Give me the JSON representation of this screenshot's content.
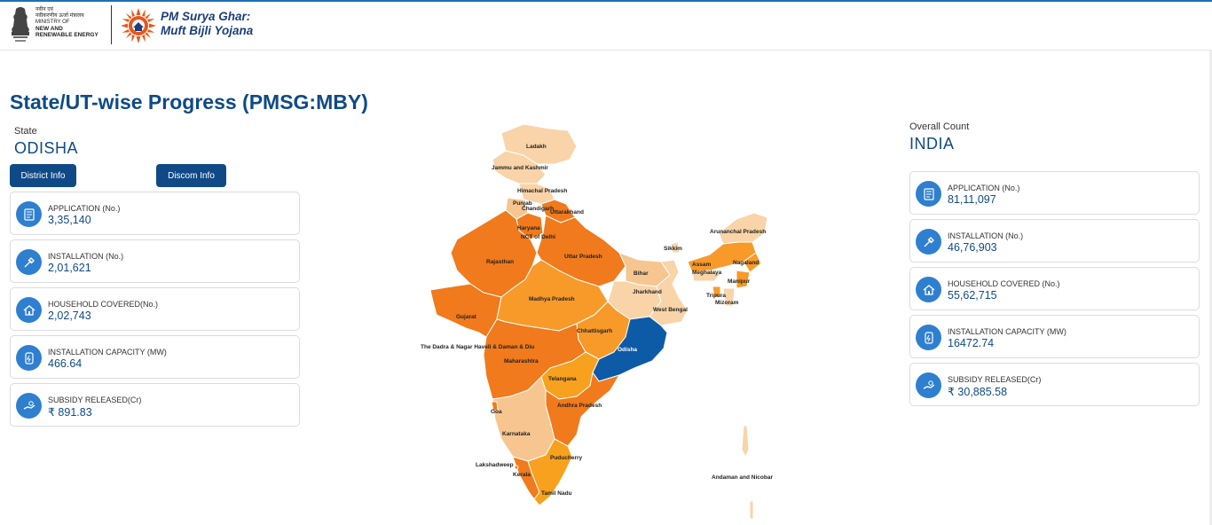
{
  "header": {
    "ministry_hindi_1": "नवीन एवं",
    "ministry_hindi_2": "नवीकरणीय ऊर्जा मंत्रालय",
    "ministry_en_1": "MINISTRY OF",
    "ministry_en_2": "NEW AND",
    "ministry_en_3": "RENEWABLE ENERGY",
    "brand_line1": "PM Surya Ghar:",
    "brand_line2": "Muft Bijli Yojana"
  },
  "page_title": "State/UT-wise Progress (PMSG:MBY)",
  "state_panel": {
    "label": "State",
    "value": "ODISHA",
    "district_button": "District Info",
    "discom_button": "Discom Info",
    "cards": [
      {
        "label": "APPLICATION (No.)",
        "value": "3,35,140",
        "icon": "application-icon"
      },
      {
        "label": "INSTALLATION (No.)",
        "value": "2,01,621",
        "icon": "installation-icon"
      },
      {
        "label": "HOUSEHOLD COVERED(No.)",
        "value": "2,02,743",
        "icon": "household-icon"
      },
      {
        "label": "INSTALLATION CAPACITY (MW)",
        "value": "466.64",
        "icon": "capacity-icon"
      },
      {
        "label": "SUBSIDY RELEASED(Cr)",
        "value": "₹ 891.83",
        "icon": "subsidy-icon"
      }
    ]
  },
  "overall_panel": {
    "label": "Overall Count",
    "value": "INDIA",
    "cards": [
      {
        "label": "APPLICATION (No.)",
        "value": "81,11,097",
        "icon": "application-icon"
      },
      {
        "label": "INSTALLATION (No.)",
        "value": "46,76,903",
        "icon": "installation-icon"
      },
      {
        "label": "HOUSEHOLD COVERED (No.)",
        "value": "55,62,715",
        "icon": "household-icon"
      },
      {
        "label": "INSTALLATION CAPACITY (MW)",
        "value": "16472.74",
        "icon": "capacity-icon"
      },
      {
        "label": "SUBSIDY RELEASED(Cr)",
        "value": "₹ 30,885.58",
        "icon": "subsidy-icon"
      }
    ]
  },
  "map": {
    "selected_state": "Odisha",
    "colors": {
      "selected": "#0d5aa7",
      "high": "#f07a1c",
      "mid": "#f79a2a",
      "low": "#f7c58f",
      "pale": "#f9d4a8",
      "border": "#ffffff"
    },
    "state_labels": [
      "Ladakh",
      "Jammu and Kashmir",
      "Himachal Pradesh",
      "Punjab",
      "Chandigarh",
      "Uttarakhand",
      "Haryana",
      "NCT of Delhi",
      "Rajasthan",
      "Uttar Pradesh",
      "Sikkim",
      "Arunanchal Pradesh",
      "Assam",
      "Nagaland",
      "Meghalaya",
      "Manipur",
      "Bihar",
      "Jharkhand",
      "Tripura",
      "Mizoram",
      "Madhya Pradesh",
      "West Bengal",
      "Gujarat",
      "Chhattisgarh",
      "Odisha",
      "The Dadra & Nagar Haveli & Daman & Diu",
      "Maharashtra",
      "Telangana",
      "Goa",
      "Andhra Pradesh",
      "Karnataka",
      "Puducherry",
      "Lakshadweep",
      "Kerala",
      "Tamil Nadu",
      "Andaman and Nicobar"
    ]
  }
}
